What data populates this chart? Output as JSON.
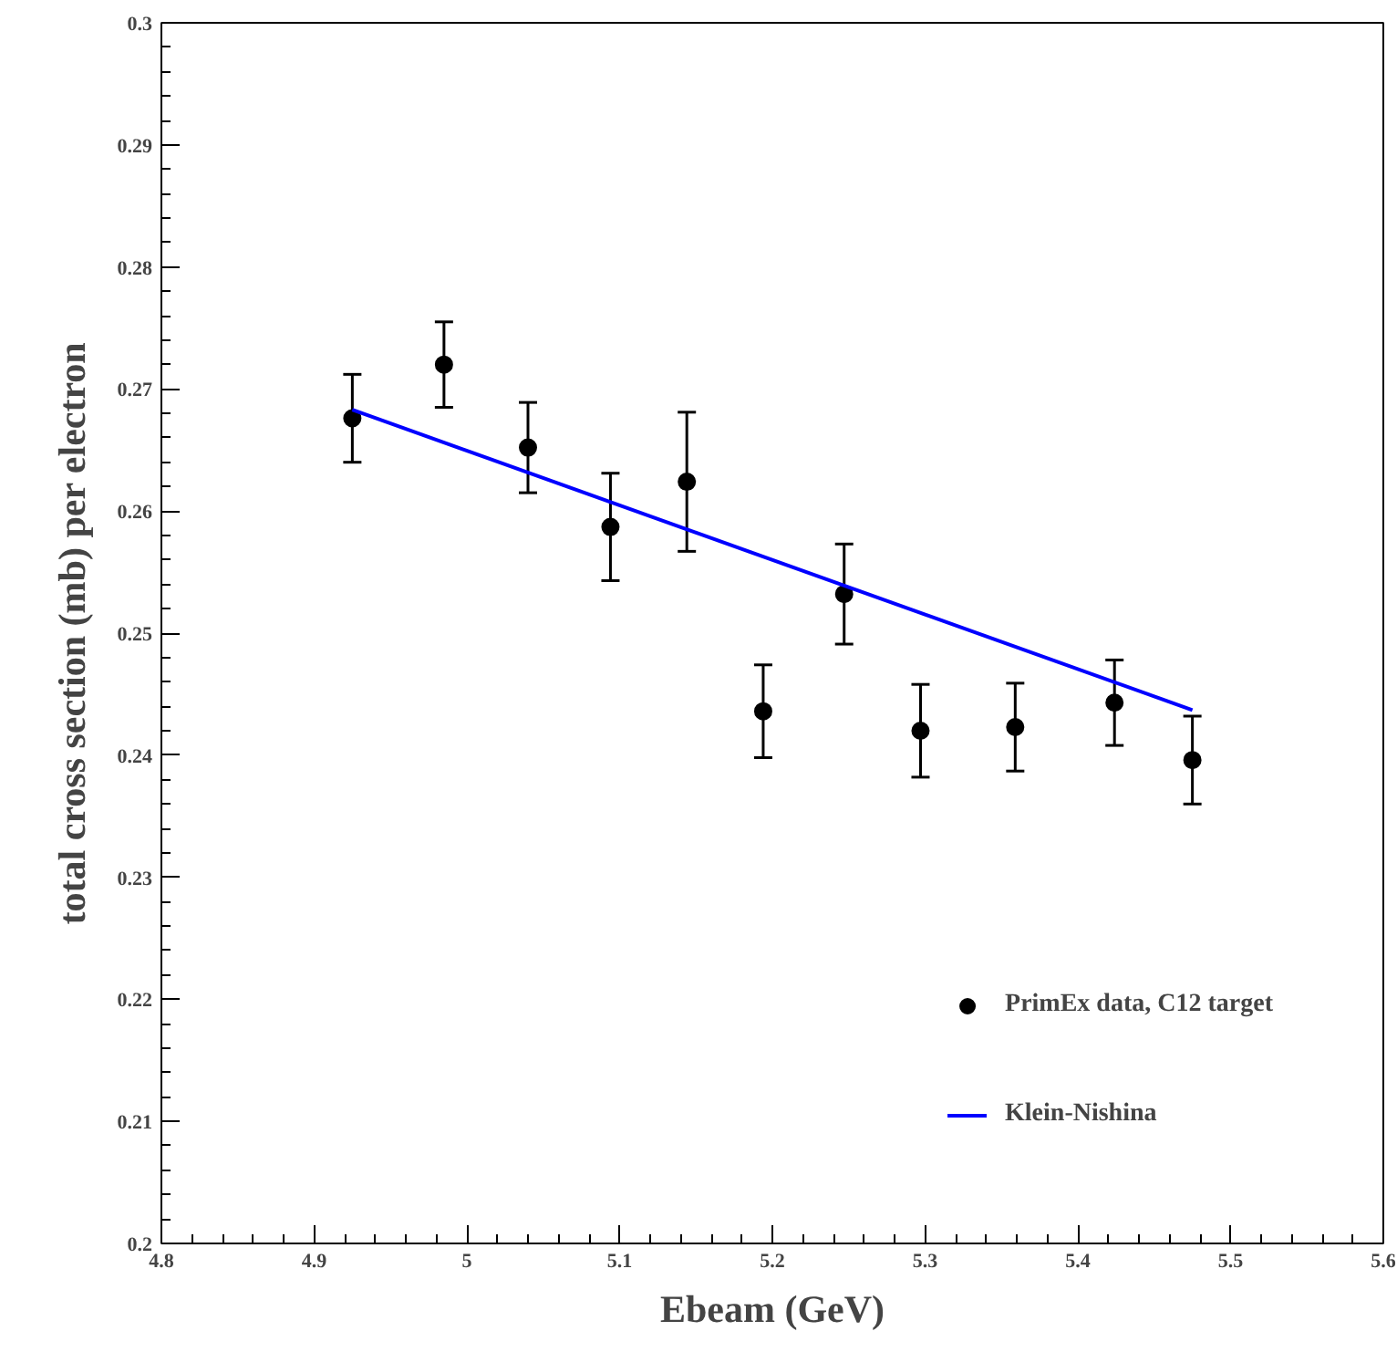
{
  "chart_data": {
    "type": "scatter",
    "xlabel": "Ebeam (GeV)",
    "ylabel": "total cross section (mb) per electron",
    "xlim": [
      4.8,
      5.6
    ],
    "xticks": [
      4.8,
      4.9,
      5,
      5.1,
      5.2,
      5.3,
      5.4,
      5.5,
      5.6
    ],
    "ylim": [
      0.2,
      0.3
    ],
    "yticks": [
      0.2,
      0.21,
      0.22,
      0.23,
      0.24,
      0.25,
      0.26,
      0.27,
      0.28,
      0.29,
      0.3
    ],
    "grid": false,
    "legend": "bottom right",
    "series": [
      {
        "name": "PrimEx data, C12 target",
        "marker": "circle",
        "color": "#000000",
        "x": [
          4.925,
          4.985,
          5.04,
          5.094,
          5.144,
          5.194,
          5.247,
          5.297,
          5.359,
          5.424,
          5.475
        ],
        "values": [
          0.2676,
          0.272,
          0.2652,
          0.2587,
          0.2624,
          0.2436,
          0.2532,
          0.242,
          0.2423,
          0.2443,
          0.2396
        ],
        "errors": [
          0.0036,
          0.0035,
          0.0037,
          0.0044,
          0.0057,
          0.0038,
          0.0041,
          0.0038,
          0.0036,
          0.0035,
          0.0036
        ]
      },
      {
        "name": "Klein-Nishina",
        "type": "line",
        "color": "#0000ff",
        "x": [
          4.925,
          5.475
        ],
        "values": [
          0.2683,
          0.2437
        ]
      }
    ]
  }
}
